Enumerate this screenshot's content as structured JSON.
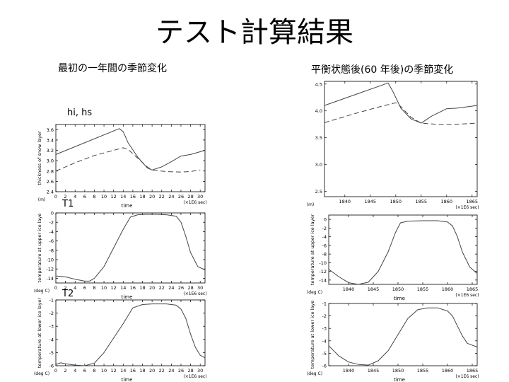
{
  "slide": {
    "title": "テスト計算結果",
    "left_heading": "最初の一年間の季節変化",
    "right_heading": "平衡状態後(60 年後)の季節変化",
    "labels": {
      "hi_hs": "hi, hs",
      "t1": "T1",
      "t2": "T2"
    }
  },
  "chart_data": [
    {
      "id": "L1",
      "type": "line",
      "xlabel": "time",
      "x_unit": "(×1E6 sec)",
      "ylabel": "thickness of snow layer",
      "y_unit": "(m)",
      "xlim": [
        0,
        31
      ],
      "ylim": [
        2.4,
        3.7
      ],
      "xticks": [
        0,
        2,
        4,
        6,
        8,
        10,
        12,
        14,
        16,
        18,
        20,
        22,
        24,
        26,
        28,
        30
      ],
      "yticks": [
        2.4,
        2.6,
        2.8,
        3.0,
        3.2,
        3.4,
        3.6
      ],
      "series": [
        {
          "style": "solid",
          "points": [
            [
              0,
              3.12
            ],
            [
              13.2,
              3.62
            ],
            [
              14,
              3.56
            ],
            [
              15,
              3.35
            ],
            [
              17,
              3.07
            ],
            [
              19,
              2.86
            ],
            [
              20,
              2.82
            ],
            [
              22,
              2.88
            ],
            [
              24,
              2.98
            ],
            [
              26,
              3.09
            ],
            [
              28,
              3.12
            ],
            [
              31,
              3.2
            ]
          ]
        },
        {
          "style": "dashed",
          "points": [
            [
              0,
              2.8
            ],
            [
              4,
              2.96
            ],
            [
              8,
              3.1
            ],
            [
              12,
              3.2
            ],
            [
              14,
              3.25
            ],
            [
              15,
              3.22
            ],
            [
              17,
              3.05
            ],
            [
              19,
              2.88
            ],
            [
              20,
              2.82
            ],
            [
              23,
              2.79
            ],
            [
              26,
              2.78
            ],
            [
              28,
              2.79
            ],
            [
              30,
              2.82
            ]
          ]
        }
      ]
    },
    {
      "id": "L2",
      "type": "line",
      "xlabel": "time",
      "x_unit": "(×1E6 sec)",
      "ylabel": "temperature at upper ice laye",
      "y_unit": "(deg C)",
      "xlim": [
        0,
        31
      ],
      "ylim": [
        -15,
        0
      ],
      "xticks": [
        0,
        2,
        4,
        6,
        8,
        10,
        12,
        14,
        16,
        18,
        20,
        22,
        24,
        26,
        28,
        30
      ],
      "yticks": [
        0,
        -2,
        -4,
        -6,
        -8,
        -10,
        -12,
        -14
      ],
      "series": [
        {
          "style": "solid",
          "points": [
            [
              0,
              -13.5
            ],
            [
              2,
              -13.7
            ],
            [
              4,
              -14.2
            ],
            [
              6,
              -14.6
            ],
            [
              7,
              -14.6
            ],
            [
              8,
              -14
            ],
            [
              10,
              -11.5
            ],
            [
              12,
              -7.5
            ],
            [
              14,
              -3.5
            ],
            [
              15.5,
              -0.9
            ],
            [
              17,
              -0.4
            ],
            [
              19,
              -0.3
            ],
            [
              21,
              -0.3
            ],
            [
              23,
              -0.4
            ],
            [
              25,
              -0.7
            ],
            [
              26,
              -2
            ],
            [
              27,
              -5
            ],
            [
              28,
              -8.5
            ],
            [
              29.5,
              -11.5
            ],
            [
              31,
              -12.2
            ]
          ]
        }
      ]
    },
    {
      "id": "L3",
      "type": "line",
      "xlabel": "time",
      "x_unit": "(×1E6 sec)",
      "ylabel": "temperature at lower ice layer",
      "y_unit": "(deg C)",
      "xlim": [
        0,
        31
      ],
      "ylim": [
        -6,
        -1
      ],
      "xticks": [
        0,
        2,
        4,
        6,
        8,
        10,
        12,
        14,
        16,
        18,
        20,
        22,
        24,
        26,
        28,
        30
      ],
      "yticks": [
        -1,
        -2,
        -3,
        -4,
        -5,
        -6
      ],
      "series": [
        {
          "style": "solid",
          "points": [
            [
              0,
              -5.9
            ],
            [
              1,
              -5.78
            ],
            [
              2,
              -5.85
            ],
            [
              4,
              -5.95
            ],
            [
              6,
              -6
            ],
            [
              8,
              -5.8
            ],
            [
              10,
              -5
            ],
            [
              12,
              -3.9
            ],
            [
              14,
              -2.8
            ],
            [
              15,
              -2.2
            ],
            [
              16,
              -1.6
            ],
            [
              18,
              -1.35
            ],
            [
              20,
              -1.3
            ],
            [
              23,
              -1.3
            ],
            [
              25,
              -1.4
            ],
            [
              26,
              -1.7
            ],
            [
              27,
              -2.4
            ],
            [
              28,
              -3.6
            ],
            [
              29,
              -4.6
            ],
            [
              30,
              -5.2
            ],
            [
              31,
              -5.4
            ]
          ]
        }
      ]
    },
    {
      "id": "R1",
      "type": "line",
      "xlabel": "",
      "x_unit": "(×1E6 sec)",
      "y_unit": "(m)",
      "xlim": [
        1836,
        1866
      ],
      "ylim": [
        2.4,
        4.55
      ],
      "xticks": [
        1840,
        1845,
        1850,
        1855,
        1860,
        1865
      ],
      "yticks": [
        2.5,
        3.0,
        3.5,
        4.0,
        4.5
      ],
      "series": [
        {
          "style": "solid",
          "points": [
            [
              1836,
              4.1
            ],
            [
              1848.5,
              4.52
            ],
            [
              1849.5,
              4.35
            ],
            [
              1851,
              4.05
            ],
            [
              1853,
              3.85
            ],
            [
              1855,
              3.77
            ],
            [
              1857,
              3.9
            ],
            [
              1860,
              4.04
            ],
            [
              1862,
              4.05
            ],
            [
              1866,
              4.1
            ]
          ]
        },
        {
          "style": "dashed",
          "points": [
            [
              1836,
              3.78
            ],
            [
              1842,
              3.95
            ],
            [
              1847,
              4.08
            ],
            [
              1850,
              4.15
            ],
            [
              1851,
              4.08
            ],
            [
              1853,
              3.88
            ],
            [
              1855,
              3.77
            ],
            [
              1858,
              3.75
            ],
            [
              1862,
              3.75
            ],
            [
              1866,
              3.77
            ]
          ]
        }
      ]
    },
    {
      "id": "R2",
      "type": "line",
      "xlabel": "time",
      "x_unit": "(×1E6 sec)",
      "ylabel": "temperature at upper ice layer",
      "y_unit": "(deg C)",
      "xlim": [
        1836,
        1866
      ],
      "ylim": [
        -15,
        1
      ],
      "xticks": [
        1840,
        1845,
        1850,
        1855,
        1860,
        1865
      ],
      "yticks": [
        0,
        -2,
        -4,
        -6,
        -8,
        -10,
        -12,
        -14
      ],
      "series": [
        {
          "style": "solid",
          "points": [
            [
              1836,
              -11.5
            ],
            [
              1838,
              -13.2
            ],
            [
              1840,
              -14.6
            ],
            [
              1842,
              -15
            ],
            [
              1844,
              -14.5
            ],
            [
              1846,
              -12
            ],
            [
              1848,
              -7.5
            ],
            [
              1849.5,
              -3
            ],
            [
              1850.5,
              -0.8
            ],
            [
              1852,
              -0.4
            ],
            [
              1855,
              -0.3
            ],
            [
              1858,
              -0.3
            ],
            [
              1860,
              -0.6
            ],
            [
              1861,
              -1.5
            ],
            [
              1862,
              -4
            ],
            [
              1863,
              -7.5
            ],
            [
              1864.5,
              -11
            ],
            [
              1866,
              -12.5
            ]
          ]
        }
      ]
    },
    {
      "id": "R3",
      "type": "line",
      "xlabel": "time",
      "x_unit": "(×1E6 sec)",
      "ylabel": "temperature at lower ice laye",
      "y_unit": "(deg C)",
      "xlim": [
        1836,
        1866
      ],
      "ylim": [
        -6,
        -1
      ],
      "xticks": [
        1840,
        1845,
        1850,
        1855,
        1860,
        1865
      ],
      "yticks": [
        -1,
        -2,
        -3,
        -4,
        -5,
        -6
      ],
      "series": [
        {
          "style": "solid",
          "points": [
            [
              1836,
              -4.4
            ],
            [
              1838,
              -5.2
            ],
            [
              1840,
              -5.7
            ],
            [
              1842,
              -5.9
            ],
            [
              1844,
              -5.95
            ],
            [
              1846,
              -5.6
            ],
            [
              1848,
              -4.8
            ],
            [
              1850,
              -3.5
            ],
            [
              1852,
              -2.2
            ],
            [
              1854,
              -1.5
            ],
            [
              1856,
              -1.35
            ],
            [
              1858,
              -1.35
            ],
            [
              1860,
              -1.6
            ],
            [
              1861,
              -2
            ],
            [
              1862,
              -2.8
            ],
            [
              1863,
              -3.6
            ],
            [
              1864,
              -4.2
            ],
            [
              1866,
              -4.5
            ]
          ]
        }
      ]
    }
  ]
}
